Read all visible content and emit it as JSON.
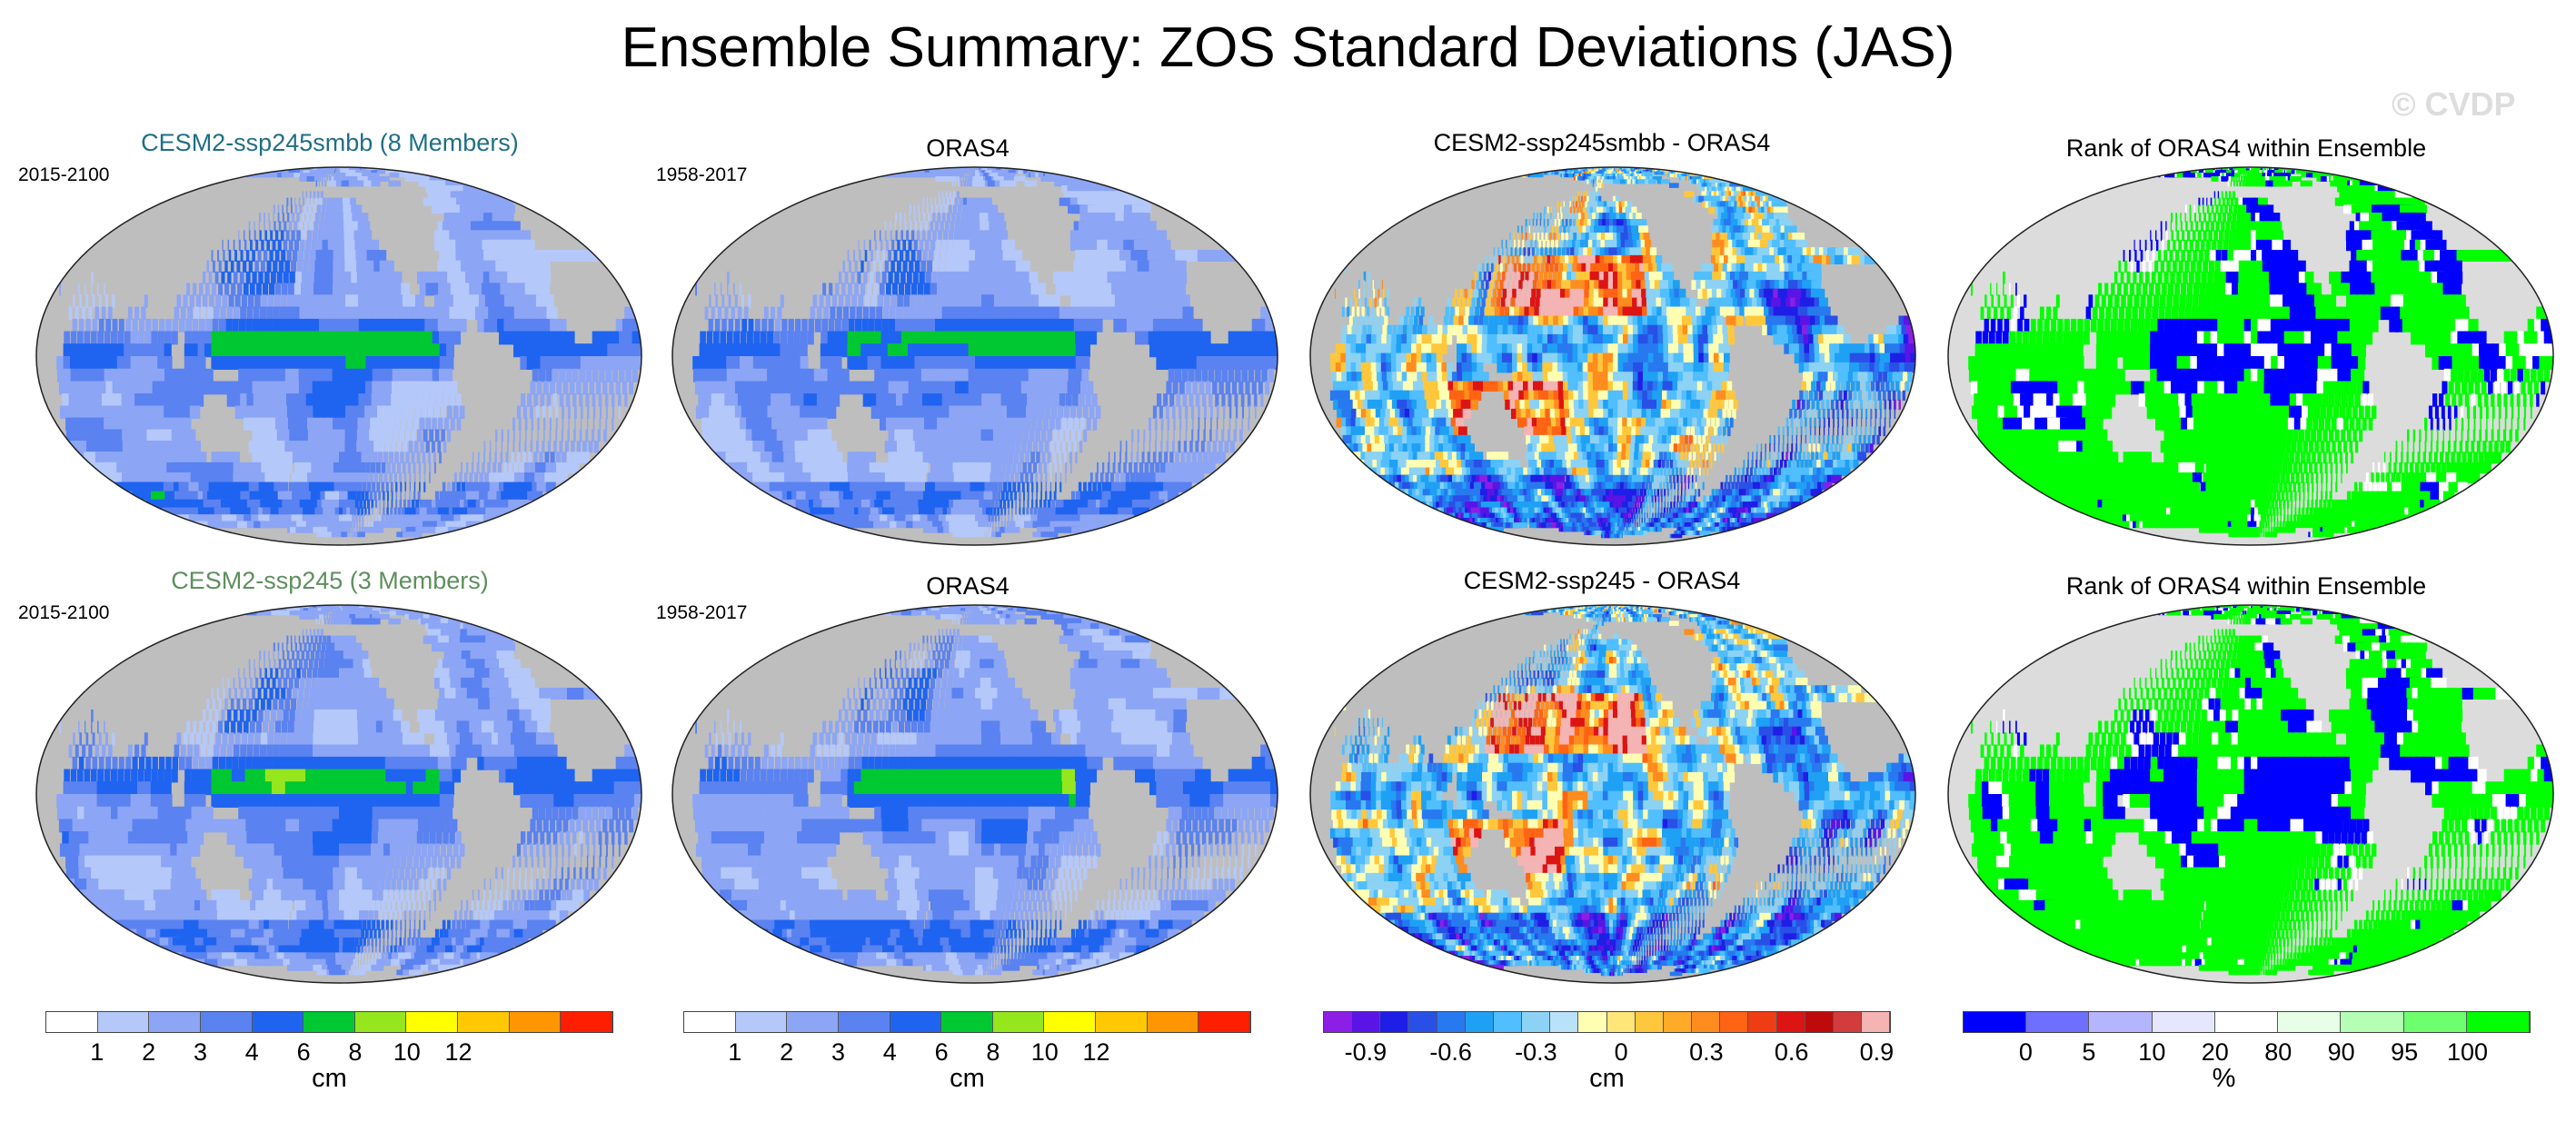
{
  "title": "Ensemble Summary: ZOS Standard Deviations (JAS)",
  "watermark": "© CVDP",
  "colors": {
    "land": "#bebebe",
    "land_light": "#dcdcdc",
    "ocean_text_teal": "#1f6f86",
    "ocean_text_green": "#5e8f5e"
  },
  "rows": [
    {
      "panels": [
        {
          "title": "CESM2-ssp245smbb (8 Members)",
          "title_color": "#1f6f86",
          "period": "2015-2100",
          "kind": "std"
        },
        {
          "title": "ORAS4",
          "title_color": "#000000",
          "period": "1958-2017",
          "kind": "std"
        },
        {
          "title": "CESM2-ssp245smbb - ORAS4",
          "title_color": "#000000",
          "period": "",
          "kind": "diff"
        },
        {
          "title": "Rank of ORAS4 within Ensemble",
          "title_color": "#000000",
          "period": "",
          "kind": "rank"
        }
      ]
    },
    {
      "panels": [
        {
          "title": "CESM2-ssp245 (3 Members)",
          "title_color": "#5e8f5e",
          "period": "2015-2100",
          "kind": "std"
        },
        {
          "title": "ORAS4",
          "title_color": "#000000",
          "period": "1958-2017",
          "kind": "std"
        },
        {
          "title": "CESM2-ssp245 - ORAS4",
          "title_color": "#000000",
          "period": "",
          "kind": "diff"
        },
        {
          "title": "Rank of ORAS4 within Ensemble",
          "title_color": "#000000",
          "period": "",
          "kind": "rank"
        }
      ]
    }
  ],
  "colorbars": [
    {
      "unit": "cm",
      "colors": [
        "#ffffff",
        "#b4c8fa",
        "#8ca5f5",
        "#5a82f0",
        "#1e64f0",
        "#00c832",
        "#96e61e",
        "#ffff00",
        "#ffc800",
        "#ff9600",
        "#ff1e00"
      ],
      "labels": [
        "1",
        "2",
        "3",
        "4",
        "6",
        "8",
        "10",
        "12"
      ]
    },
    {
      "unit": "cm",
      "colors": [
        "#ffffff",
        "#b4c8fa",
        "#8ca5f5",
        "#5a82f0",
        "#1e64f0",
        "#00c832",
        "#96e61e",
        "#ffff00",
        "#ffc800",
        "#ff9600",
        "#ff1e00"
      ],
      "labels": [
        "1",
        "2",
        "3",
        "4",
        "6",
        "8",
        "10",
        "12"
      ]
    },
    {
      "unit": "cm",
      "colors": [
        "#8c1ee6",
        "#5a14e6",
        "#1e1ee6",
        "#2850e6",
        "#2878f0",
        "#1ea0f5",
        "#50beff",
        "#8cd2f5",
        "#b9e1fa",
        "#ffffb4",
        "#ffe678",
        "#ffc83c",
        "#ffaa28",
        "#ff8c1e",
        "#ff6414",
        "#f03c14",
        "#dc1414",
        "#be0a0a",
        "#d23c3c",
        "#f5b4b4"
      ],
      "labels": [
        "-0.9",
        "-0.6",
        "-0.3",
        "0",
        "0.3",
        "0.6",
        "0.9"
      ]
    },
    {
      "unit": "%",
      "colors": [
        "#0000ff",
        "#6e6eff",
        "#b4b4ff",
        "#e6e6ff",
        "#ffffff",
        "#e6ffe6",
        "#b4ffb4",
        "#6eff6e",
        "#00ff00"
      ],
      "labels": [
        "0",
        "5",
        "10",
        "20",
        "80",
        "90",
        "95",
        "100"
      ]
    }
  ]
}
